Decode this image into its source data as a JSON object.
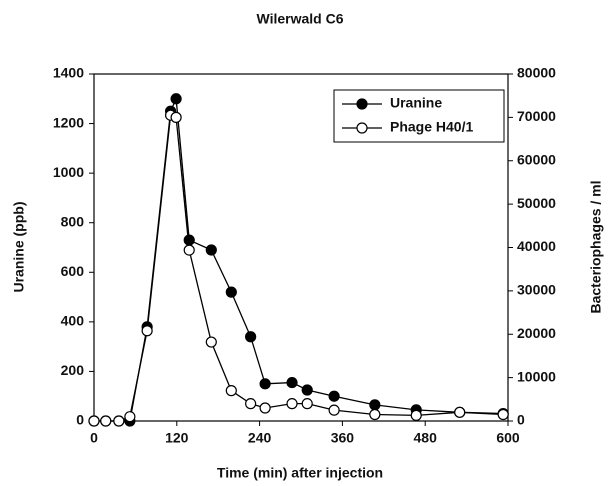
{
  "chart_data": {
    "type": "line",
    "title": "Wilerwald C6",
    "x_label": "Time (min) after injection",
    "y_label": "Uranine (ppb)",
    "y2_label": "Bacteriophages / ml",
    "x": [
      0,
      17,
      36,
      52,
      77,
      111,
      119,
      138,
      170,
      199,
      227,
      248,
      287,
      309,
      348,
      407,
      467,
      530,
      593
    ],
    "series": [
      {
        "name": "Uranine",
        "color": "#000000",
        "values": [
          0,
          0,
          0,
          0,
          380,
          1250,
          1300,
          730,
          690,
          520,
          340,
          150,
          155,
          125,
          100,
          65,
          45,
          35,
          30
        ]
      },
      {
        "name": "Phage H40/1",
        "color": "#ffffff",
        "axis": "y2",
        "values": [
          0,
          0,
          0,
          1000,
          20800,
          70500,
          70000,
          39400,
          18200,
          7000,
          4000,
          3000,
          4000,
          4000,
          2500,
          1500,
          1300,
          2000,
          1500
        ]
      }
    ],
    "xlim": [
      0,
      600
    ],
    "xticks": [
      0,
      120,
      240,
      360,
      480,
      600
    ],
    "ylim": [
      0,
      1400
    ],
    "yticks": [
      0,
      200,
      400,
      600,
      800,
      1000,
      1200,
      1400
    ],
    "y2lim": [
      0,
      80000
    ],
    "y2ticks": [
      0,
      10000,
      20000,
      30000,
      40000,
      50000,
      60000,
      70000,
      80000
    ],
    "legend": "upper right"
  }
}
